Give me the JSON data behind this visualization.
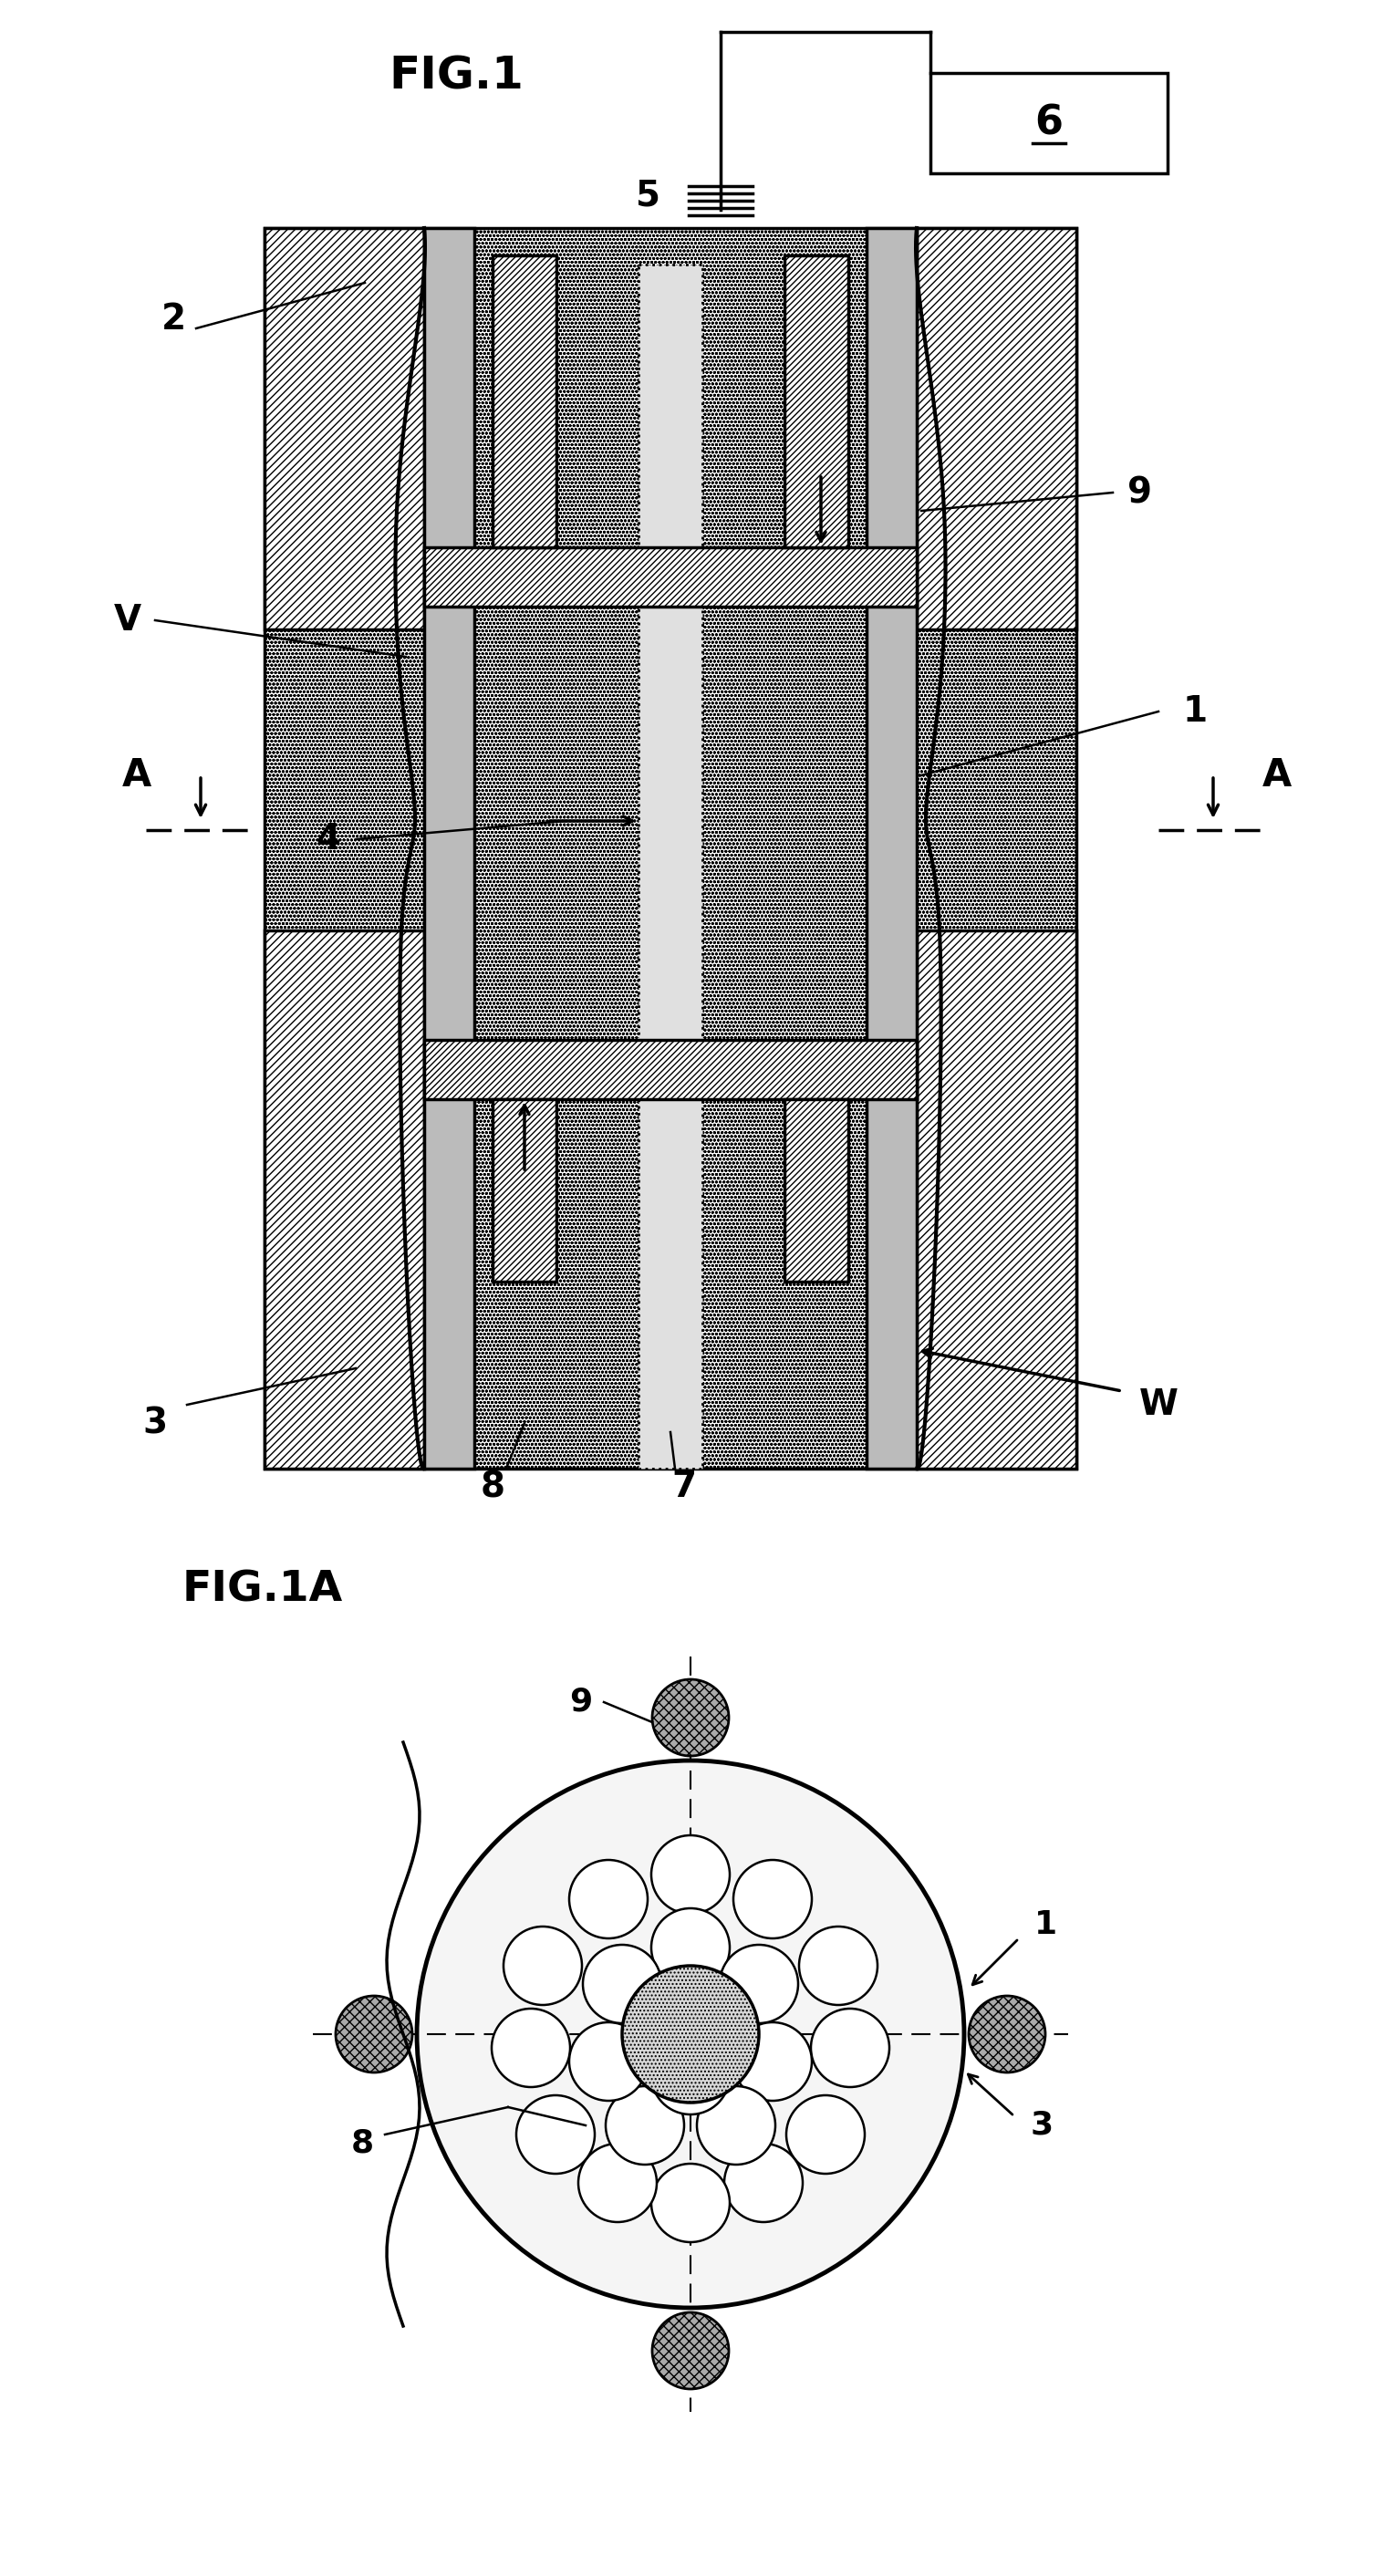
{
  "fig1_title": "FIG.1",
  "fig1a_title": "FIG.1A",
  "label_6": "6",
  "labels_fig1": [
    "2",
    "V",
    "A",
    "1",
    "9",
    "4",
    "5",
    "7",
    "8",
    "3",
    "W"
  ],
  "labels_fig1a": [
    "9",
    "1",
    "8",
    "3"
  ]
}
